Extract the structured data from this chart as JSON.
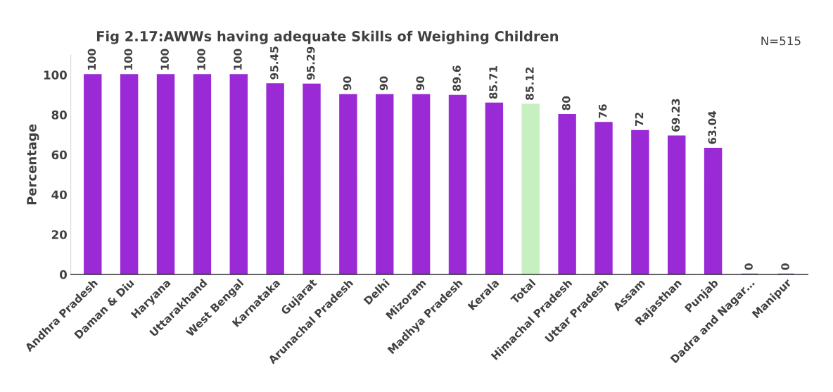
{
  "chart_data": {
    "type": "bar",
    "title": "Fig 2.17:AWWs having adequate Skills of Weighing Children",
    "ylabel": "Percentage",
    "annotations": [
      "N=515"
    ],
    "categories": [
      "Andhra Pradesh",
      "Daman & Diu",
      "Haryana",
      "Uttarakhand",
      "West Bengal",
      "Karnataka",
      "Gujarat",
      "Arunachal Pradesh",
      "Delhi",
      "Mizoram",
      "Madhya Pradesh",
      "Kerala",
      "Total",
      "Himachal Pradesh",
      "Uttar Pradesh",
      "Assam",
      "Rajasthan",
      "Punjab",
      "Dadra and Nagar…",
      "Manipur"
    ],
    "values": [
      100,
      100,
      100,
      100,
      100,
      95.45,
      95.29,
      90,
      90,
      90,
      89.6,
      85.71,
      85.12,
      80,
      76,
      72,
      69.23,
      63.04,
      0,
      0
    ],
    "colors": [
      "#9a2ad6",
      "#9a2ad6",
      "#9a2ad6",
      "#9a2ad6",
      "#9a2ad6",
      "#9a2ad6",
      "#9a2ad6",
      "#9a2ad6",
      "#9a2ad6",
      "#9a2ad6",
      "#9a2ad6",
      "#9a2ad6",
      "#c6f0c0",
      "#9a2ad6",
      "#9a2ad6",
      "#9a2ad6",
      "#9a2ad6",
      "#9a2ad6",
      "#9a2ad6",
      "#9a2ad6"
    ],
    "ylim": [
      0,
      110
    ],
    "yticks": [
      0,
      20,
      40,
      60,
      80,
      100
    ],
    "data_labels": true,
    "grid": false
  }
}
